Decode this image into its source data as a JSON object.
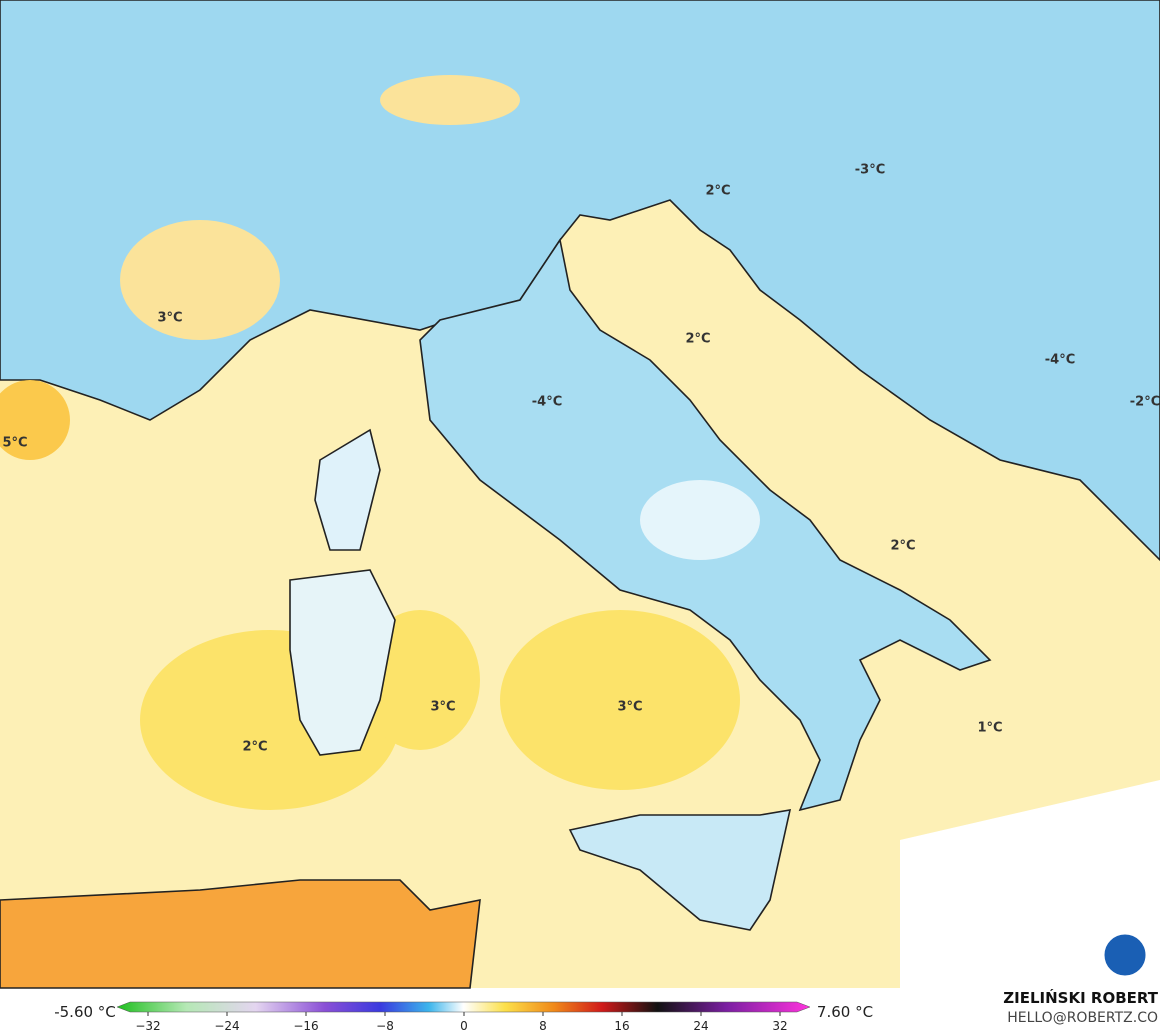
{
  "map": {
    "labels": [
      "3°C",
      "5°C",
      "2°C",
      "-3°C",
      "2°C",
      "-4°C",
      "-4°C",
      "-2°C",
      "2°C",
      "3°C",
      "3°C",
      "2°C",
      "1°C"
    ]
  },
  "colorbar": {
    "min_label": "-5.60 °C",
    "max_label": "7.60 °C",
    "ticks": [
      {
        "value": -32,
        "label": "−32"
      },
      {
        "value": -24,
        "label": "−24"
      },
      {
        "value": -16,
        "label": "−16"
      },
      {
        "value": -8,
        "label": "−8"
      },
      0,
      8,
      16,
      24,
      32
    ]
  },
  "credit": {
    "author": "ZIELIŃSKI ROBERT",
    "email": "HELLO@ROBERTZ.CO"
  }
}
